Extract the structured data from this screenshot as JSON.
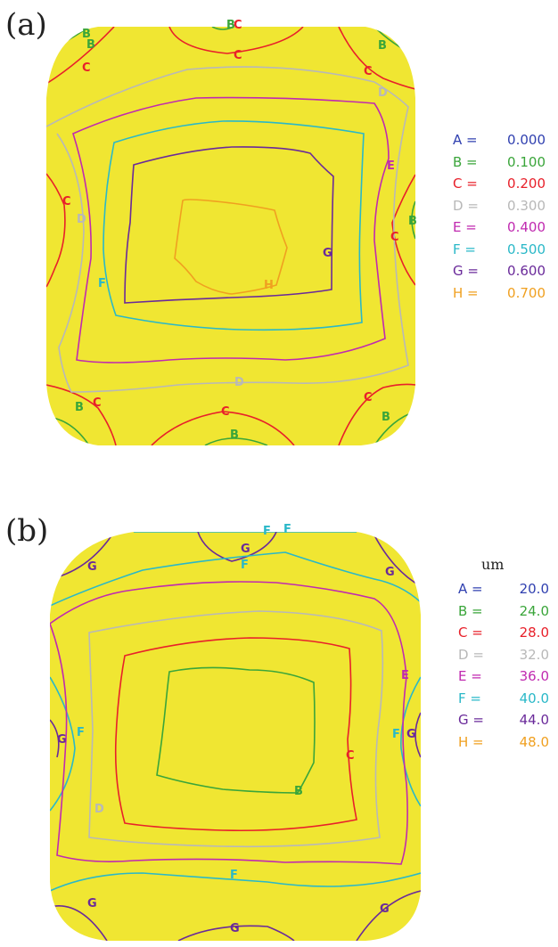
{
  "panels": [
    {
      "label": "(a)",
      "unit": "",
      "legend": [
        {
          "key": "A =",
          "value": "0.000",
          "color": "#3040b0"
        },
        {
          "key": "B =",
          "value": "0.100",
          "color": "#3aa53a"
        },
        {
          "key": "C =",
          "value": "0.200",
          "color": "#e8202a"
        },
        {
          "key": "D =",
          "value": "0.300",
          "color": "#b8b8b8"
        },
        {
          "key": "E =",
          "value": "0.400",
          "color": "#c02ab0"
        },
        {
          "key": "F =",
          "value": "0.500",
          "color": "#2ab8c8"
        },
        {
          "key": "G =",
          "value": "0.600",
          "color": "#6a2a9a"
        },
        {
          "key": "H =",
          "value": "0.700",
          "color": "#f0a020"
        }
      ]
    },
    {
      "label": "(b)",
      "unit": "um",
      "legend": [
        {
          "key": "A =",
          "value": "20.0",
          "color": "#3040b0"
        },
        {
          "key": "B =",
          "value": "24.0",
          "color": "#3aa53a"
        },
        {
          "key": "C =",
          "value": "28.0",
          "color": "#e8202a"
        },
        {
          "key": "D =",
          "value": "32.0",
          "color": "#b8b8b8"
        },
        {
          "key": "E =",
          "value": "36.0",
          "color": "#c02ab0"
        },
        {
          "key": "F =",
          "value": "40.0",
          "color": "#2ab8c8"
        },
        {
          "key": "G =",
          "value": "44.0",
          "color": "#6a2a9a"
        },
        {
          "key": "H =",
          "value": "48.0",
          "color": "#f0a020"
        }
      ]
    }
  ],
  "fill_color": "#f0e632",
  "contour_labels": {
    "B": "B",
    "C": "C",
    "D": "D",
    "E": "E",
    "F": "F",
    "G": "G",
    "H": "H"
  }
}
